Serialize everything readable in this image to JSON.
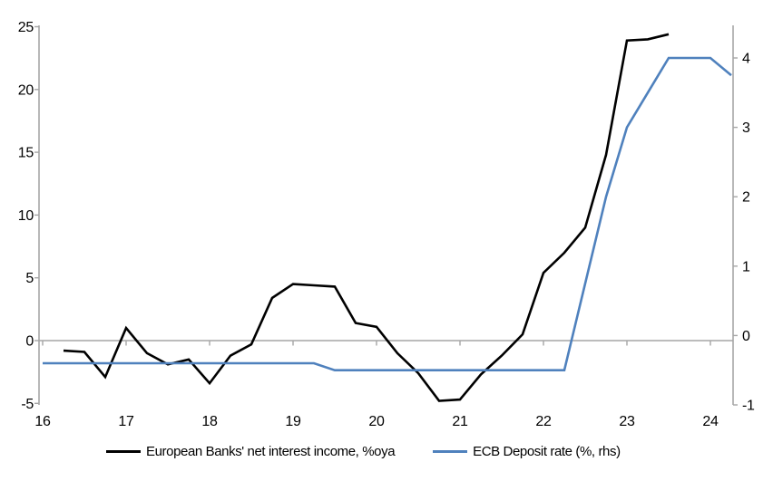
{
  "chart_data": {
    "type": "line",
    "title": "",
    "subtitle": "",
    "grid": "single horizontal gridline at zero only",
    "legend_position": "bottom",
    "colors": {
      "nii_line": "#000000",
      "deposit_rate_line": "#4F81BD",
      "axis": "#A6A6A6",
      "tick_text": "#000000",
      "background": "#FFFFFF"
    },
    "x_axis": {
      "tick_labels": [
        "16",
        "17",
        "18",
        "19",
        "20",
        "21",
        "22",
        "23",
        "24"
      ],
      "meaning": "years 2016-2024, quarterly data"
    },
    "left_axis": {
      "tick_labels": [
        "25",
        "20",
        "15",
        "10",
        "5",
        "0",
        "-5"
      ],
      "tick_values": [
        25,
        20,
        15,
        10,
        5,
        0,
        -5
      ],
      "range": [
        -5,
        25
      ]
    },
    "right_axis": {
      "tick_labels": [
        "4",
        "3",
        "2",
        "1",
        "0",
        "-1"
      ],
      "tick_values": [
        4,
        3,
        2,
        1,
        0,
        -1
      ],
      "range": [
        -1,
        4.5
      ]
    },
    "series": [
      {
        "name": "European Banks' net interest income, %oya",
        "axis": "left",
        "color": "#000000",
        "quarters": [
          "2016Q2",
          "2016Q3",
          "2016Q4",
          "2017Q1",
          "2017Q2",
          "2017Q3",
          "2017Q4",
          "2018Q1",
          "2018Q2",
          "2018Q3",
          "2018Q4",
          "2019Q1",
          "2019Q2",
          "2019Q3",
          "2019Q4",
          "2020Q1",
          "2020Q2",
          "2020Q3",
          "2020Q4",
          "2021Q1",
          "2021Q2",
          "2021Q3",
          "2021Q4",
          "2022Q1",
          "2022Q2",
          "2022Q3",
          "2022Q4",
          "2023Q1",
          "2023Q2",
          "2023Q3"
        ],
        "values": [
          -0.8,
          -0.9,
          -2.9,
          1.0,
          -1.0,
          -1.9,
          -1.5,
          -3.4,
          -1.2,
          -0.3,
          3.4,
          4.5,
          4.4,
          4.3,
          1.4,
          1.1,
          -1.0,
          -2.6,
          -4.8,
          -4.7,
          -2.7,
          -1.2,
          0.5,
          5.4,
          7.0,
          9.0,
          14.8,
          23.9,
          24.0,
          24.4
        ]
      },
      {
        "name": "ECB Deposit rate (%, rhs)",
        "axis": "right",
        "color": "#4F81BD",
        "quarters": [
          "2016Q1",
          "2016Q2",
          "2016Q3",
          "2016Q4",
          "2017Q1",
          "2017Q2",
          "2017Q3",
          "2017Q4",
          "2018Q1",
          "2018Q2",
          "2018Q3",
          "2018Q4",
          "2019Q1",
          "2019Q2",
          "2019Q3",
          "2019Q4",
          "2020Q1",
          "2020Q2",
          "2020Q3",
          "2020Q4",
          "2021Q1",
          "2021Q2",
          "2021Q3",
          "2021Q4",
          "2022Q1",
          "2022Q2",
          "2022Q3",
          "2022Q4",
          "2023Q1",
          "2023Q2",
          "2023Q3",
          "2023Q4",
          "2024Q1",
          "2024Q2"
        ],
        "values": [
          -0.4,
          -0.4,
          -0.4,
          -0.4,
          -0.4,
          -0.4,
          -0.4,
          -0.4,
          -0.4,
          -0.4,
          -0.4,
          -0.4,
          -0.4,
          -0.4,
          -0.5,
          -0.5,
          -0.5,
          -0.5,
          -0.5,
          -0.5,
          -0.5,
          -0.5,
          -0.5,
          -0.5,
          -0.5,
          -0.5,
          0.75,
          2.0,
          3.0,
          3.5,
          4.0,
          4.0,
          4.0,
          3.75
        ]
      }
    ]
  }
}
